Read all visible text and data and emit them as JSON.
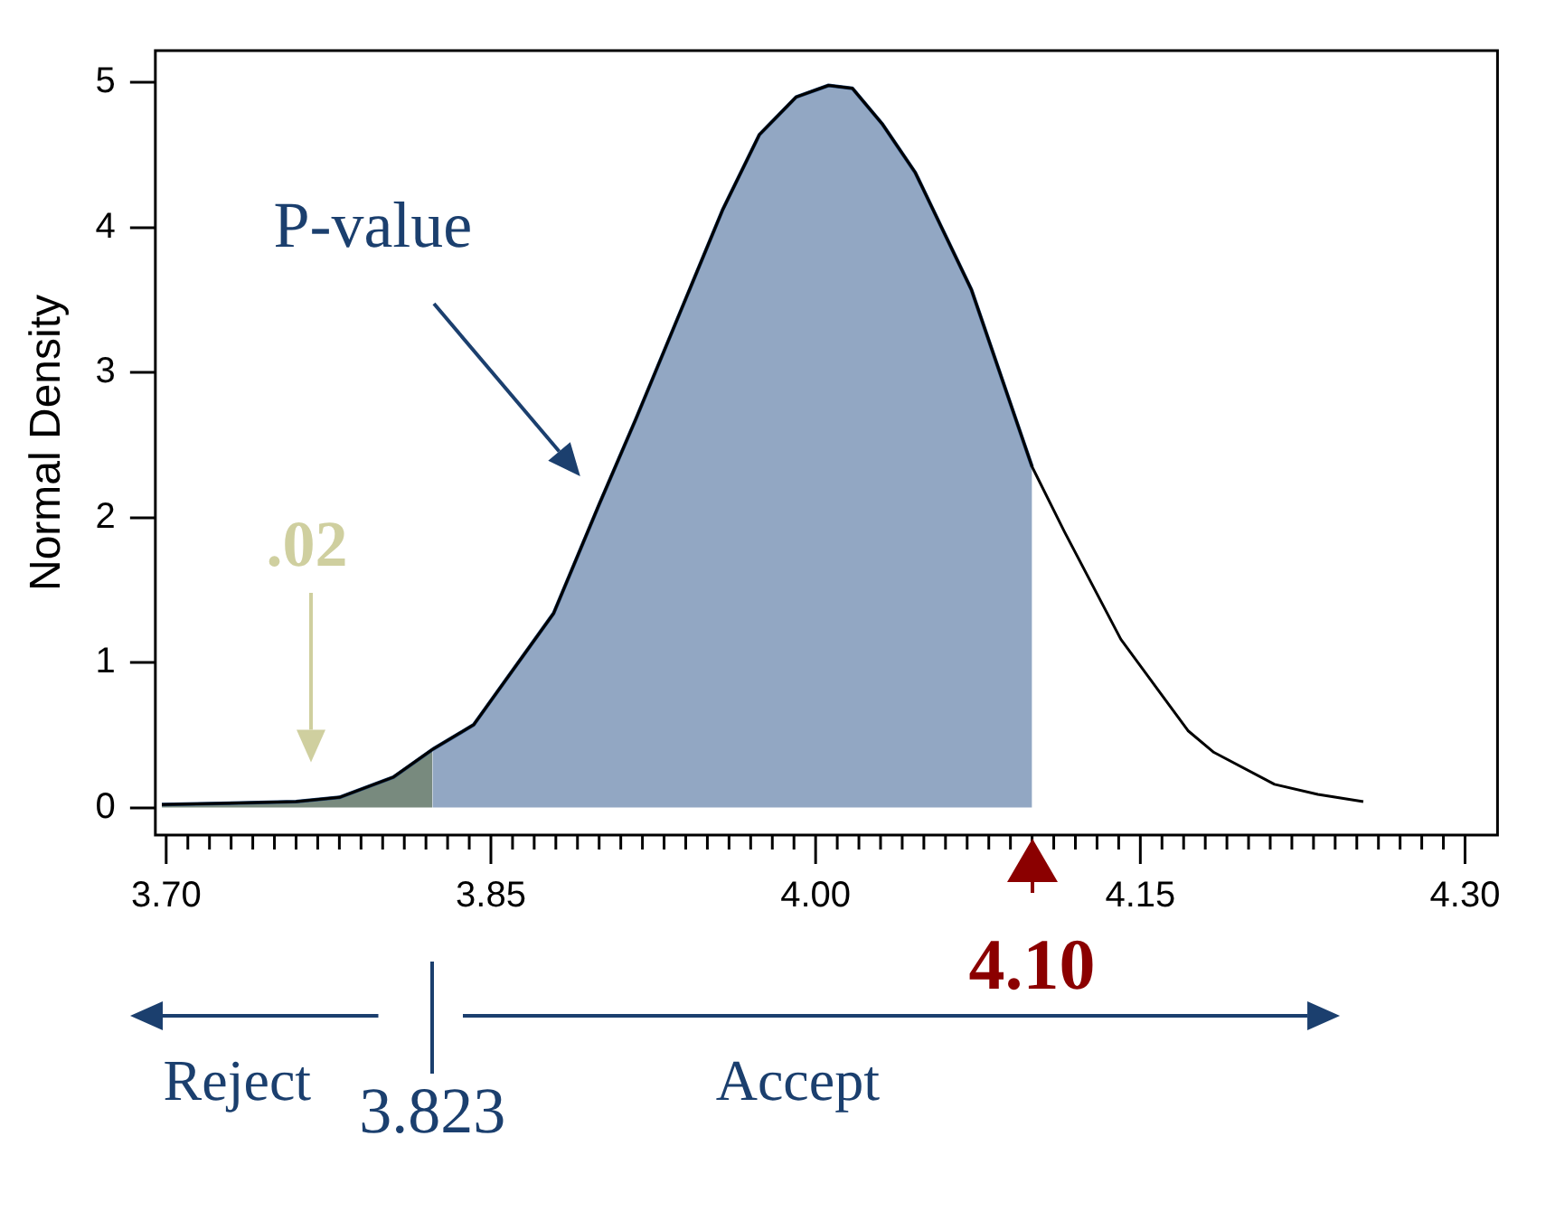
{
  "chart_data": {
    "type": "line",
    "ylabel": "Normal Density",
    "xlim": [
      3.695,
      4.315
    ],
    "ylim": [
      -0.19,
      5.22
    ],
    "xticks": [
      {
        "value": 3.7,
        "label": "3.70"
      },
      {
        "value": 3.71,
        "label": null
      },
      {
        "value": 3.72,
        "label": null
      },
      {
        "value": 3.73,
        "label": null
      },
      {
        "value": 3.74,
        "label": null
      },
      {
        "value": 3.75,
        "label": null
      },
      {
        "value": 3.76,
        "label": null
      },
      {
        "value": 3.77,
        "label": null
      },
      {
        "value": 3.78,
        "label": null
      },
      {
        "value": 3.79,
        "label": null
      },
      {
        "value": 3.8,
        "label": null
      },
      {
        "value": 3.81,
        "label": null
      },
      {
        "value": 3.82,
        "label": null
      },
      {
        "value": 3.83,
        "label": null
      },
      {
        "value": 3.84,
        "label": null
      },
      {
        "value": 3.85,
        "label": "3.85"
      },
      {
        "value": 3.86,
        "label": null
      },
      {
        "value": 3.87,
        "label": null
      },
      {
        "value": 3.88,
        "label": null
      },
      {
        "value": 3.89,
        "label": null
      },
      {
        "value": 3.9,
        "label": null
      },
      {
        "value": 3.91,
        "label": null
      },
      {
        "value": 3.92,
        "label": null
      },
      {
        "value": 3.93,
        "label": null
      },
      {
        "value": 3.94,
        "label": null
      },
      {
        "value": 3.95,
        "label": null
      },
      {
        "value": 3.96,
        "label": null
      },
      {
        "value": 3.97,
        "label": null
      },
      {
        "value": 3.98,
        "label": null
      },
      {
        "value": 3.99,
        "label": null
      },
      {
        "value": 4.0,
        "label": "4.00"
      },
      {
        "value": 4.01,
        "label": null
      },
      {
        "value": 4.02,
        "label": null
      },
      {
        "value": 4.03,
        "label": null
      },
      {
        "value": 4.04,
        "label": null
      },
      {
        "value": 4.05,
        "label": null
      },
      {
        "value": 4.06,
        "label": null
      },
      {
        "value": 4.07,
        "label": null
      },
      {
        "value": 4.08,
        "label": null
      },
      {
        "value": 4.09,
        "label": null
      },
      {
        "value": 4.1,
        "label": null
      },
      {
        "value": 4.11,
        "label": null
      },
      {
        "value": 4.12,
        "label": null
      },
      {
        "value": 4.13,
        "label": null
      },
      {
        "value": 4.14,
        "label": null
      },
      {
        "value": 4.15,
        "label": "4.15"
      },
      {
        "value": 4.16,
        "label": null
      },
      {
        "value": 4.17,
        "label": null
      },
      {
        "value": 4.18,
        "label": null
      },
      {
        "value": 4.19,
        "label": null
      },
      {
        "value": 4.2,
        "label": null
      },
      {
        "value": 4.21,
        "label": null
      },
      {
        "value": 4.22,
        "label": null
      },
      {
        "value": 4.23,
        "label": null
      },
      {
        "value": 4.24,
        "label": null
      },
      {
        "value": 4.25,
        "label": null
      },
      {
        "value": 4.26,
        "label": null
      },
      {
        "value": 4.27,
        "label": null
      },
      {
        "value": 4.28,
        "label": null
      },
      {
        "value": 4.29,
        "label": null
      },
      {
        "value": 4.3,
        "label": "4.30"
      }
    ],
    "yticks": [
      0,
      1,
      2,
      3,
      4,
      5
    ],
    "grid": false,
    "legend": false,
    "marker": "none",
    "annotations": [
      "P-value",
      ".02",
      {
        "text": "4.10",
        "x": 4.1,
        "y": 0
      },
      "3.823",
      "Reject",
      "Accept"
    ],
    "series": [
      {
        "type": "area",
        "color": "#6e8275",
        "x": [
          3.698,
          3.76,
          3.78,
          3.805,
          3.823
        ],
        "values": [
          0.02,
          0.04,
          0.07,
          0.21,
          0.4
        ]
      },
      {
        "type": "area",
        "color": "#8aa1bf",
        "x": [
          3.823,
          3.842,
          3.879,
          3.9,
          3.917,
          3.957,
          3.974,
          3.991,
          4.006,
          4.017,
          4.031,
          4.046,
          4.072,
          4.1
        ],
        "values": [
          0.4,
          0.57,
          1.34,
          2.09,
          2.68,
          4.12,
          4.64,
          4.9,
          4.98,
          4.96,
          4.71,
          4.38,
          3.57,
          2.35
        ]
      },
      {
        "type": "line",
        "color": "#000000",
        "x": [
          3.698,
          3.76,
          3.78,
          3.805,
          3.823,
          3.842,
          3.879,
          3.9,
          3.917,
          3.957,
          3.974,
          3.991,
          4.006,
          4.017,
          4.031,
          4.046,
          4.072,
          4.1,
          4.115,
          4.141,
          4.172,
          4.184,
          4.212,
          4.232,
          4.253
        ],
        "values": [
          0.02,
          0.04,
          0.07,
          0.21,
          0.4,
          0.57,
          1.34,
          2.09,
          2.68,
          4.12,
          4.64,
          4.9,
          4.98,
          4.96,
          4.71,
          4.38,
          3.57,
          2.35,
          1.9,
          1.16,
          0.53,
          0.38,
          0.16,
          0.09,
          0.04
        ]
      }
    ]
  }
}
